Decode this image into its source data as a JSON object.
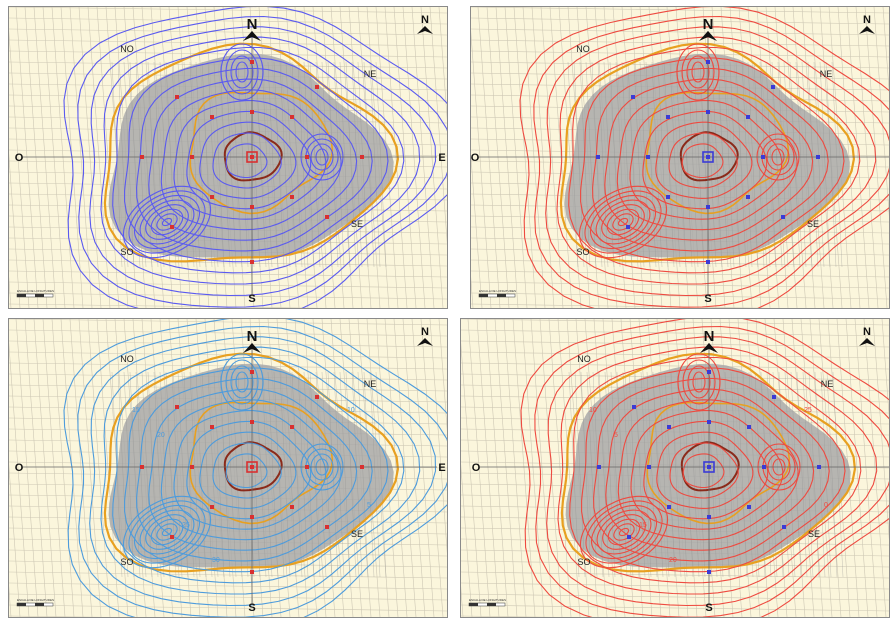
{
  "panels": [
    {
      "id": "top-left",
      "contour_color": "#5a5af0",
      "contour_labels": [],
      "north_big": "N",
      "north_small": "N",
      "directions": {
        "O": "O",
        "E": "E",
        "S": "S",
        "NO": "NO",
        "NE": "NE",
        "SE": "SE",
        "SO": "SO"
      },
      "scale_text": "ESCALA DE LONGITUDES"
    },
    {
      "id": "top-right",
      "contour_color": "#ee4a40",
      "contour_labels": [],
      "north_big": "N",
      "north_small": "N",
      "directions": {
        "O": "O",
        "E": "E",
        "S": "S",
        "NO": "NO",
        "NE": "NE",
        "SE": "SE",
        "SO": "SO"
      },
      "scale_text": "ESCALA DE LONGITUDES"
    },
    {
      "id": "bottom-left",
      "contour_color": "#4d9bdc",
      "contour_labels": [
        "15",
        "20",
        "25",
        "30",
        "10",
        "5"
      ],
      "north_big": "N",
      "north_small": "N",
      "directions": {
        "O": "O",
        "E": "E",
        "S": "S",
        "NO": "NO",
        "NE": "NE",
        "SE": "SE",
        "SO": "SO"
      },
      "scale_text": "ESCALA DE LONGITUDES"
    },
    {
      "id": "bottom-right",
      "contour_color": "#ee4a40",
      "contour_labels": [
        "10",
        "5",
        "15",
        "20",
        "25",
        "0"
      ],
      "north_big": "N",
      "north_small": "N",
      "directions": {
        "O": "O",
        "E": "E",
        "S": "S",
        "NO": "NO",
        "NE": "NE",
        "SE": "SE",
        "SO": "SO"
      },
      "scale_text": "ESCALA DE LONGITUDES"
    }
  ],
  "colors": {
    "background": "#fbf6dc",
    "urban_area": "#a9a9a9",
    "boundary_inner": "#8b2a1a",
    "boundary_outer": "#e8a020",
    "road_grid": "#c9c3b0",
    "sensor_blue": "#3b3bd6",
    "sensor_red": "#d93030"
  }
}
